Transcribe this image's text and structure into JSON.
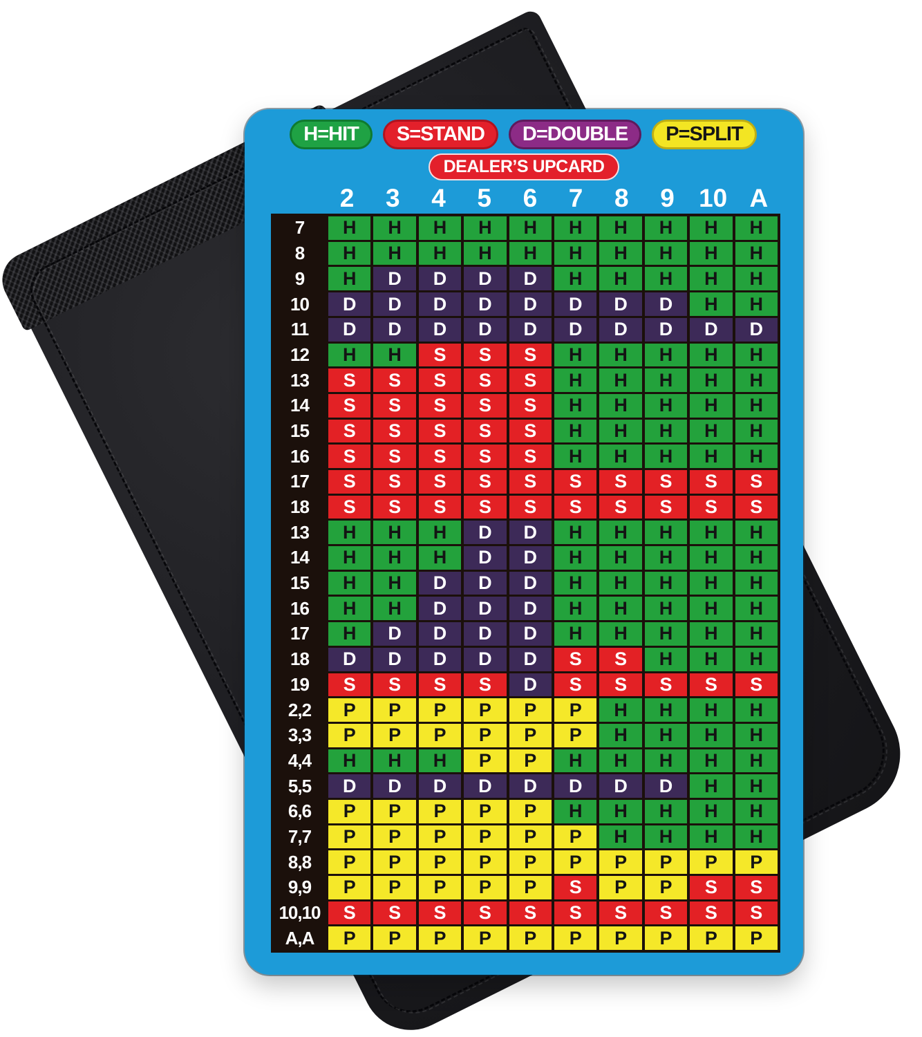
{
  "colors": {
    "card_bg": "#1D9BD8",
    "table_bg": "#1B100B",
    "header_fg": "#FFFFFF",
    "row_label_fg": "#FFFFFF",
    "dealer_pill_bg": "#E3202B",
    "wallet_leather": "#202024"
  },
  "legend": [
    {
      "id": "hit",
      "label": "H=HIT",
      "bg": "#1FA244",
      "fg": "#FFFFFF",
      "border": "#0F7A2F"
    },
    {
      "id": "stand",
      "label": "S=STAND",
      "bg": "#E3202B",
      "fg": "#FFFFFF",
      "border": "#B01320"
    },
    {
      "id": "double",
      "label": "D=DOUBLE",
      "bg": "#8C2B86",
      "fg": "#FFFFFF",
      "border": "#5E1A5C"
    },
    {
      "id": "split",
      "label": "P=SPLIT",
      "bg": "#F3E523",
      "fg": "#161616",
      "border": "#BFAE14"
    }
  ],
  "dealer_label": "DEALER’S UPCARD",
  "actions": {
    "H": {
      "name": "HIT",
      "bg": "#23A23C",
      "fg": "#141414"
    },
    "S": {
      "name": "STAND",
      "bg": "#E32125",
      "fg": "#FFFFFF"
    },
    "D": {
      "name": "DOUBLE",
      "bg": "#3D2A58",
      "fg": "#FFFFFF"
    },
    "P": {
      "name": "SPLIT",
      "bg": "#F5E829",
      "fg": "#141414"
    }
  },
  "chart_data": {
    "type": "table",
    "title": "Blackjack basic strategy card",
    "columns": [
      "2",
      "3",
      "4",
      "5",
      "6",
      "7",
      "8",
      "9",
      "10",
      "A"
    ],
    "rows": [
      {
        "label": "7",
        "cells": [
          "H",
          "H",
          "H",
          "H",
          "H",
          "H",
          "H",
          "H",
          "H",
          "H"
        ]
      },
      {
        "label": "8",
        "cells": [
          "H",
          "H",
          "H",
          "H",
          "H",
          "H",
          "H",
          "H",
          "H",
          "H"
        ]
      },
      {
        "label": "9",
        "cells": [
          "H",
          "D",
          "D",
          "D",
          "D",
          "H",
          "H",
          "H",
          "H",
          "H"
        ]
      },
      {
        "label": "10",
        "cells": [
          "D",
          "D",
          "D",
          "D",
          "D",
          "D",
          "D",
          "D",
          "H",
          "H"
        ]
      },
      {
        "label": "11",
        "cells": [
          "D",
          "D",
          "D",
          "D",
          "D",
          "D",
          "D",
          "D",
          "D",
          "D"
        ]
      },
      {
        "label": "12",
        "cells": [
          "H",
          "H",
          "S",
          "S",
          "S",
          "H",
          "H",
          "H",
          "H",
          "H"
        ]
      },
      {
        "label": "13",
        "cells": [
          "S",
          "S",
          "S",
          "S",
          "S",
          "H",
          "H",
          "H",
          "H",
          "H"
        ]
      },
      {
        "label": "14",
        "cells": [
          "S",
          "S",
          "S",
          "S",
          "S",
          "H",
          "H",
          "H",
          "H",
          "H"
        ]
      },
      {
        "label": "15",
        "cells": [
          "S",
          "S",
          "S",
          "S",
          "S",
          "H",
          "H",
          "H",
          "H",
          "H"
        ]
      },
      {
        "label": "16",
        "cells": [
          "S",
          "S",
          "S",
          "S",
          "S",
          "H",
          "H",
          "H",
          "H",
          "H"
        ]
      },
      {
        "label": "17",
        "cells": [
          "S",
          "S",
          "S",
          "S",
          "S",
          "S",
          "S",
          "S",
          "S",
          "S"
        ]
      },
      {
        "label": "18",
        "cells": [
          "S",
          "S",
          "S",
          "S",
          "S",
          "S",
          "S",
          "S",
          "S",
          "S"
        ]
      },
      {
        "label": "13",
        "cells": [
          "H",
          "H",
          "H",
          "D",
          "D",
          "H",
          "H",
          "H",
          "H",
          "H"
        ]
      },
      {
        "label": "14",
        "cells": [
          "H",
          "H",
          "H",
          "D",
          "D",
          "H",
          "H",
          "H",
          "H",
          "H"
        ]
      },
      {
        "label": "15",
        "cells": [
          "H",
          "H",
          "D",
          "D",
          "D",
          "H",
          "H",
          "H",
          "H",
          "H"
        ]
      },
      {
        "label": "16",
        "cells": [
          "H",
          "H",
          "D",
          "D",
          "D",
          "H",
          "H",
          "H",
          "H",
          "H"
        ]
      },
      {
        "label": "17",
        "cells": [
          "H",
          "D",
          "D",
          "D",
          "D",
          "H",
          "H",
          "H",
          "H",
          "H"
        ]
      },
      {
        "label": "18",
        "cells": [
          "D",
          "D",
          "D",
          "D",
          "D",
          "S",
          "S",
          "H",
          "H",
          "H"
        ]
      },
      {
        "label": "19",
        "cells": [
          "S",
          "S",
          "S",
          "S",
          "D",
          "S",
          "S",
          "S",
          "S",
          "S"
        ]
      },
      {
        "label": "2,2",
        "cells": [
          "P",
          "P",
          "P",
          "P",
          "P",
          "P",
          "H",
          "H",
          "H",
          "H"
        ]
      },
      {
        "label": "3,3",
        "cells": [
          "P",
          "P",
          "P",
          "P",
          "P",
          "P",
          "H",
          "H",
          "H",
          "H"
        ]
      },
      {
        "label": "4,4",
        "cells": [
          "H",
          "H",
          "H",
          "P",
          "P",
          "H",
          "H",
          "H",
          "H",
          "H"
        ]
      },
      {
        "label": "5,5",
        "cells": [
          "D",
          "D",
          "D",
          "D",
          "D",
          "D",
          "D",
          "D",
          "H",
          "H"
        ]
      },
      {
        "label": "6,6",
        "cells": [
          "P",
          "P",
          "P",
          "P",
          "P",
          "H",
          "H",
          "H",
          "H",
          "H"
        ]
      },
      {
        "label": "7,7",
        "cells": [
          "P",
          "P",
          "P",
          "P",
          "P",
          "P",
          "H",
          "H",
          "H",
          "H"
        ]
      },
      {
        "label": "8,8",
        "cells": [
          "P",
          "P",
          "P",
          "P",
          "P",
          "P",
          "P",
          "P",
          "P",
          "P"
        ]
      },
      {
        "label": "9,9",
        "cells": [
          "P",
          "P",
          "P",
          "P",
          "P",
          "S",
          "P",
          "P",
          "S",
          "S"
        ]
      },
      {
        "label": "10,10",
        "cells": [
          "S",
          "S",
          "S",
          "S",
          "S",
          "S",
          "S",
          "S",
          "S",
          "S"
        ]
      },
      {
        "label": "A,A",
        "cells": [
          "P",
          "P",
          "P",
          "P",
          "P",
          "P",
          "P",
          "P",
          "P",
          "P"
        ]
      }
    ]
  }
}
